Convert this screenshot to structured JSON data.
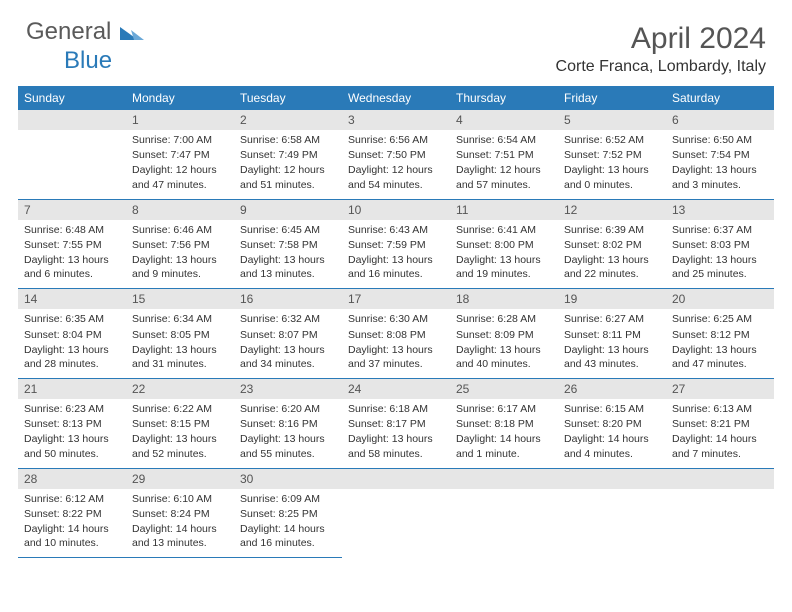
{
  "brand": {
    "part1": "General",
    "part2": "Blue"
  },
  "title": "April 2024",
  "location": "Corte Franca, Lombardy, Italy",
  "colors": {
    "header_bg": "#2a7ab8",
    "header_fg": "#ffffff",
    "daynum_bg": "#e6e6e6",
    "rule": "#2a7ab8",
    "text": "#333333",
    "title": "#555555"
  },
  "weekdays": [
    "Sunday",
    "Monday",
    "Tuesday",
    "Wednesday",
    "Thursday",
    "Friday",
    "Saturday"
  ],
  "weeks": [
    [
      null,
      {
        "n": "1",
        "sunrise": "7:00 AM",
        "sunset": "7:47 PM",
        "daylight": "12 hours and 47 minutes."
      },
      {
        "n": "2",
        "sunrise": "6:58 AM",
        "sunset": "7:49 PM",
        "daylight": "12 hours and 51 minutes."
      },
      {
        "n": "3",
        "sunrise": "6:56 AM",
        "sunset": "7:50 PM",
        "daylight": "12 hours and 54 minutes."
      },
      {
        "n": "4",
        "sunrise": "6:54 AM",
        "sunset": "7:51 PM",
        "daylight": "12 hours and 57 minutes."
      },
      {
        "n": "5",
        "sunrise": "6:52 AM",
        "sunset": "7:52 PM",
        "daylight": "13 hours and 0 minutes."
      },
      {
        "n": "6",
        "sunrise": "6:50 AM",
        "sunset": "7:54 PM",
        "daylight": "13 hours and 3 minutes."
      }
    ],
    [
      {
        "n": "7",
        "sunrise": "6:48 AM",
        "sunset": "7:55 PM",
        "daylight": "13 hours and 6 minutes."
      },
      {
        "n": "8",
        "sunrise": "6:46 AM",
        "sunset": "7:56 PM",
        "daylight": "13 hours and 9 minutes."
      },
      {
        "n": "9",
        "sunrise": "6:45 AM",
        "sunset": "7:58 PM",
        "daylight": "13 hours and 13 minutes."
      },
      {
        "n": "10",
        "sunrise": "6:43 AM",
        "sunset": "7:59 PM",
        "daylight": "13 hours and 16 minutes."
      },
      {
        "n": "11",
        "sunrise": "6:41 AM",
        "sunset": "8:00 PM",
        "daylight": "13 hours and 19 minutes."
      },
      {
        "n": "12",
        "sunrise": "6:39 AM",
        "sunset": "8:02 PM",
        "daylight": "13 hours and 22 minutes."
      },
      {
        "n": "13",
        "sunrise": "6:37 AM",
        "sunset": "8:03 PM",
        "daylight": "13 hours and 25 minutes."
      }
    ],
    [
      {
        "n": "14",
        "sunrise": "6:35 AM",
        "sunset": "8:04 PM",
        "daylight": "13 hours and 28 minutes."
      },
      {
        "n": "15",
        "sunrise": "6:34 AM",
        "sunset": "8:05 PM",
        "daylight": "13 hours and 31 minutes."
      },
      {
        "n": "16",
        "sunrise": "6:32 AM",
        "sunset": "8:07 PM",
        "daylight": "13 hours and 34 minutes."
      },
      {
        "n": "17",
        "sunrise": "6:30 AM",
        "sunset": "8:08 PM",
        "daylight": "13 hours and 37 minutes."
      },
      {
        "n": "18",
        "sunrise": "6:28 AM",
        "sunset": "8:09 PM",
        "daylight": "13 hours and 40 minutes."
      },
      {
        "n": "19",
        "sunrise": "6:27 AM",
        "sunset": "8:11 PM",
        "daylight": "13 hours and 43 minutes."
      },
      {
        "n": "20",
        "sunrise": "6:25 AM",
        "sunset": "8:12 PM",
        "daylight": "13 hours and 47 minutes."
      }
    ],
    [
      {
        "n": "21",
        "sunrise": "6:23 AM",
        "sunset": "8:13 PM",
        "daylight": "13 hours and 50 minutes."
      },
      {
        "n": "22",
        "sunrise": "6:22 AM",
        "sunset": "8:15 PM",
        "daylight": "13 hours and 52 minutes."
      },
      {
        "n": "23",
        "sunrise": "6:20 AM",
        "sunset": "8:16 PM",
        "daylight": "13 hours and 55 minutes."
      },
      {
        "n": "24",
        "sunrise": "6:18 AM",
        "sunset": "8:17 PM",
        "daylight": "13 hours and 58 minutes."
      },
      {
        "n": "25",
        "sunrise": "6:17 AM",
        "sunset": "8:18 PM",
        "daylight": "14 hours and 1 minute."
      },
      {
        "n": "26",
        "sunrise": "6:15 AM",
        "sunset": "8:20 PM",
        "daylight": "14 hours and 4 minutes."
      },
      {
        "n": "27",
        "sunrise": "6:13 AM",
        "sunset": "8:21 PM",
        "daylight": "14 hours and 7 minutes."
      }
    ],
    [
      {
        "n": "28",
        "sunrise": "6:12 AM",
        "sunset": "8:22 PM",
        "daylight": "14 hours and 10 minutes."
      },
      {
        "n": "29",
        "sunrise": "6:10 AM",
        "sunset": "8:24 PM",
        "daylight": "14 hours and 13 minutes."
      },
      {
        "n": "30",
        "sunrise": "6:09 AM",
        "sunset": "8:25 PM",
        "daylight": "14 hours and 16 minutes."
      },
      null,
      null,
      null,
      null
    ]
  ],
  "labels": {
    "sunrise": "Sunrise:",
    "sunset": "Sunset:",
    "daylight": "Daylight:"
  }
}
